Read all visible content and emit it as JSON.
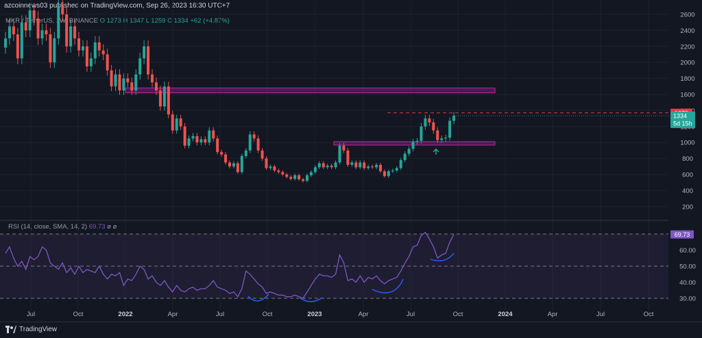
{
  "header": {
    "publisher": "azcoinnews03 published on TradingView.com, Sep 26, 2023 16:30 UTC+7"
  },
  "legend": {
    "symbol": "MKR / TetherUS, 1W, BINANCE",
    "o": "O 1273",
    "h": "H 1347",
    "l": "L 1259",
    "c": "C 1334",
    "chg": "+62 (+4.87%)"
  },
  "rsi_legend": {
    "label": "RSI (14, close, SMA, 14, 2)",
    "value": "69.73",
    "extra": "ø ø"
  },
  "footer": {
    "brand": "TradingView"
  },
  "colors": {
    "background": "#131722",
    "up": "#26a69a",
    "down": "#ef5350",
    "rsi": "#7e57c2",
    "zone_border": "#d81b9a",
    "level_line": "#f23645"
  },
  "chart_data": [
    {
      "type": "candlestick",
      "title": "MKR / TetherUS, 1W, BINANCE",
      "x_labels": [
        "Jul",
        "Oct",
        "2022",
        "Apr",
        "Jul",
        "Oct",
        "2023",
        "Apr",
        "Jul",
        "Oct",
        "2024",
        "Apr",
        "Jul",
        "Oct"
      ],
      "y_ticks": [
        200,
        400,
        600,
        800,
        1000,
        1200,
        1400,
        1600,
        1800,
        2000,
        2200,
        2400,
        2600
      ],
      "ylim": [
        0,
        2600
      ],
      "zones": [
        {
          "low": 1620,
          "high": 1680
        },
        {
          "low": 970,
          "high": 1010
        }
      ],
      "level_line": 1370,
      "price_tags": {
        "resistance": "1370",
        "last": "1334",
        "countdown": "5d 15h"
      },
      "closes": [
        2300,
        2450,
        2350,
        2050,
        2500,
        2400,
        2650,
        2550,
        2300,
        2400,
        2350,
        2000,
        2300,
        2700,
        2600,
        2200,
        2450,
        2300,
        2150,
        2200,
        1950,
        2050,
        2250,
        2150,
        2100,
        1900,
        1700,
        1850,
        1650,
        1800,
        1750,
        1650,
        1850,
        2050,
        2200,
        1850,
        1750,
        1650,
        1450,
        1700,
        1350,
        1150,
        1300,
        1200,
        960,
        1050,
        1080,
        1000,
        1040,
        1000,
        1150,
        1050,
        880,
        850,
        750,
        700,
        740,
        630,
        830,
        900,
        1100,
        1050,
        900,
        800,
        680,
        700,
        650,
        630,
        600,
        570,
        545,
        590,
        540,
        520,
        590,
        630,
        690,
        740,
        690,
        710,
        690,
        750,
        960,
        900,
        720,
        750,
        690,
        750,
        680,
        700,
        690,
        720,
        640,
        580,
        640,
        650,
        680,
        780,
        860,
        920,
        1010,
        1020,
        1200,
        1300,
        1250,
        1150,
        1030,
        1050,
        1060,
        1270,
        1334
      ],
      "rsi": {
        "value": 69.73,
        "levels": [
          70,
          50,
          30
        ],
        "y_ticks": [
          30,
          40,
          50,
          60
        ],
        "values": [
          58,
          62,
          55,
          50,
          53,
          48,
          56,
          54,
          56,
          62,
          60,
          52,
          50,
          48,
          52,
          46,
          49,
          45,
          50,
          46,
          48,
          47,
          46,
          50,
          45,
          42,
          45,
          44,
          46,
          38,
          42,
          41,
          45,
          50,
          48,
          42,
          44,
          40,
          38,
          41,
          37,
          34,
          38,
          35,
          34,
          36,
          37,
          35,
          36,
          36,
          38,
          41,
          37,
          36,
          35,
          33,
          34,
          31,
          36,
          47,
          45,
          42,
          39,
          37,
          33,
          34,
          33,
          32,
          32,
          31,
          31,
          32,
          31,
          30,
          34,
          38,
          42,
          45,
          44,
          44,
          43,
          45,
          57,
          52,
          41,
          42,
          40,
          44,
          40,
          43,
          42,
          44,
          41,
          39,
          41,
          42,
          43,
          47,
          52,
          56,
          62,
          63,
          69,
          71,
          67,
          62,
          55,
          57,
          58,
          65,
          69.73
        ]
      }
    }
  ]
}
